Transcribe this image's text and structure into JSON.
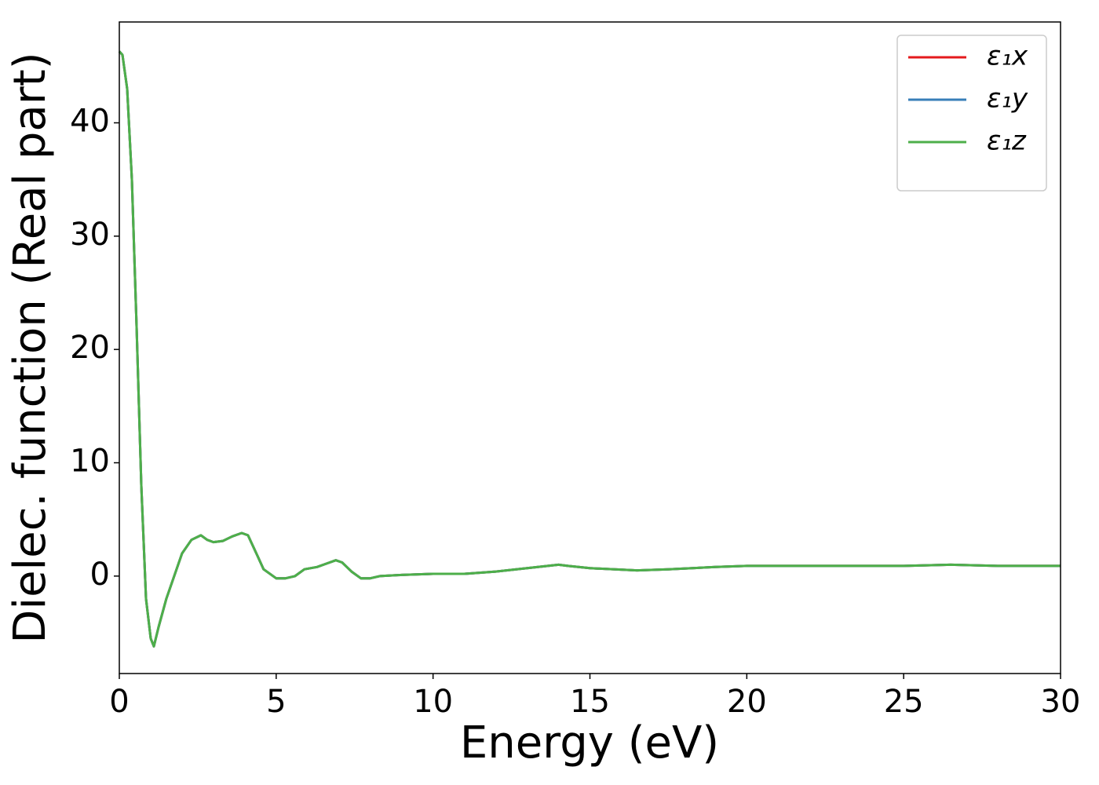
{
  "chart_data": {
    "type": "line",
    "xlabel": "Energy (eV)",
    "ylabel": "Dielec. function (Real part)",
    "x": [
      0,
      0.1,
      0.25,
      0.4,
      0.55,
      0.7,
      0.85,
      1.0,
      1.1,
      1.25,
      1.5,
      2.0,
      2.3,
      2.6,
      2.8,
      3.0,
      3.3,
      3.6,
      3.9,
      4.1,
      4.4,
      4.6,
      5.0,
      5.3,
      5.6,
      5.9,
      6.3,
      6.6,
      6.9,
      7.1,
      7.4,
      7.7,
      8.0,
      8.3,
      9,
      10,
      11,
      12,
      13,
      14,
      14.3,
      15,
      16.5,
      17.5,
      19,
      20,
      22,
      23.5,
      25,
      26.5,
      28,
      29,
      30
    ],
    "series": [
      {
        "name": "ε₁x",
        "color": "#e41a1c",
        "values": [
          46.3,
          46,
          43,
          35,
          22,
          8,
          -2,
          -5.5,
          -6.2,
          -4.5,
          -2,
          2,
          3.2,
          3.6,
          3.2,
          3.0,
          3.1,
          3.5,
          3.8,
          3.6,
          1.8,
          0.6,
          -0.2,
          -0.2,
          0,
          0.6,
          0.8,
          1.1,
          1.4,
          1.2,
          0.4,
          -0.2,
          -0.2,
          0,
          0.1,
          0.2,
          0.2,
          0.4,
          0.7,
          1.0,
          0.9,
          0.7,
          0.5,
          0.6,
          0.8,
          0.9,
          0.9,
          0.9,
          0.9,
          1.0,
          0.9,
          0.9,
          0.9
        ]
      },
      {
        "name": "ε₁y",
        "color": "#377eb8",
        "values": [
          46.3,
          46,
          43,
          35,
          22,
          8,
          -2,
          -5.5,
          -6.2,
          -4.5,
          -2,
          2,
          3.2,
          3.6,
          3.2,
          3.0,
          3.1,
          3.5,
          3.8,
          3.6,
          1.8,
          0.6,
          -0.2,
          -0.2,
          0,
          0.6,
          0.8,
          1.1,
          1.4,
          1.2,
          0.4,
          -0.2,
          -0.2,
          0,
          0.1,
          0.2,
          0.2,
          0.4,
          0.7,
          1.0,
          0.9,
          0.7,
          0.5,
          0.6,
          0.8,
          0.9,
          0.9,
          0.9,
          0.9,
          1.0,
          0.9,
          0.9,
          0.9
        ]
      },
      {
        "name": "ε₁z",
        "color": "#4daf4a",
        "values": [
          46.3,
          46,
          43,
          35,
          22,
          8,
          -2,
          -5.5,
          -6.2,
          -4.5,
          -2,
          2,
          3.2,
          3.6,
          3.2,
          3.0,
          3.1,
          3.5,
          3.8,
          3.6,
          1.8,
          0.6,
          -0.2,
          -0.2,
          0,
          0.6,
          0.8,
          1.1,
          1.4,
          1.2,
          0.4,
          -0.2,
          -0.2,
          0,
          0.1,
          0.2,
          0.2,
          0.4,
          0.7,
          1.0,
          0.9,
          0.7,
          0.5,
          0.6,
          0.8,
          0.9,
          0.9,
          0.9,
          0.9,
          1.0,
          0.9,
          0.9,
          0.9
        ]
      }
    ],
    "xlim": [
      0,
      30
    ],
    "xticks": [
      0,
      5,
      10,
      15,
      20,
      25,
      30
    ],
    "ylim": [
      -8.6,
      48.9
    ],
    "yticks": [
      0,
      10,
      20,
      30,
      40
    ],
    "legend": "upper right"
  }
}
